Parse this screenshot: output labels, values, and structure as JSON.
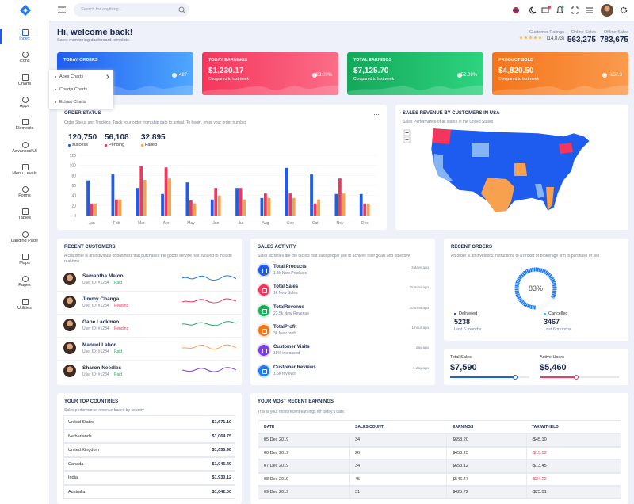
{
  "header": {
    "search_placeholder": "Search for anything..."
  },
  "sidebar": {
    "items": [
      "Index",
      "Icons",
      "Charts",
      "Apps",
      "Elements",
      "Advanced UI",
      "Menu Levels",
      "Forms",
      "Tables",
      "Landing Page",
      "Maps",
      "Pages",
      "Utilities"
    ],
    "submenu": [
      "Apex Charts",
      "Chartjs Charts",
      "Echart Charts"
    ]
  },
  "welcome": {
    "title": "Hi, welcome back!",
    "subtitle": "Sales monitoring dashboard template."
  },
  "stats": [
    {
      "label": "Customer Ratings",
      "value": "(14,873)"
    },
    {
      "label": "Online Sales",
      "value": "563,275"
    },
    {
      "label": "Offline Sales",
      "value": "783,675"
    }
  ],
  "cards": [
    {
      "title": "TODAY ORDERS",
      "change": "+427"
    },
    {
      "title": "TODAY EARNINGS",
      "value": "$1,230.17",
      "subtitle": "Compared to last week",
      "change": "23.09%"
    },
    {
      "title": "TOTAL EARNINGS",
      "value": "$7,125.70",
      "subtitle": "Compared to last week",
      "change": "52.09%"
    },
    {
      "title": "PRODUCT SOLD",
      "value": "$4,820.50",
      "subtitle": "Compared to last week",
      "change": "-152.3"
    }
  ],
  "order_status": {
    "title": "ORDER STATUS",
    "description": "Order Status and Tracking. Track your order from ship date to arrival. To begin, enter your order number.",
    "chart_data": {
      "type": "bar",
      "categories": [
        "Jan",
        "Feb",
        "Mar",
        "Apr",
        "May",
        "Jun",
        "Jul",
        "Aug",
        "Sep",
        "Oct",
        "Nov",
        "Dec"
      ],
      "ylim": [
        0,
        120
      ],
      "yticks": [
        0,
        20,
        40,
        60,
        80,
        100,
        120
      ],
      "series": [
        {
          "name": "success",
          "total": "120,750",
          "color": "#1e5cf0",
          "values": [
            70,
            82,
            55,
            43,
            66,
            32,
            55,
            35,
            95,
            82,
            43,
            43
          ]
        },
        {
          "name": "Pending",
          "total": "56,108",
          "color": "#f5365c",
          "values": [
            24,
            32,
            98,
            96,
            30,
            55,
            55,
            44,
            44,
            24,
            74,
            24
          ]
        },
        {
          "name": "Failed",
          "total": "32,895",
          "color": "#f7a14f",
          "values": [
            24,
            32,
            71,
            74,
            24,
            40,
            32,
            35,
            35,
            32,
            44,
            24
          ]
        }
      ]
    }
  },
  "map": {
    "title": "SALES REVENUE BY CUSTOMERS IN USA",
    "subtitle": "Sales Performance of all states in the United States"
  },
  "customers": {
    "title": "RECENT CUSTOMERS",
    "description": "A customer is an individual or business that purchases the goods service has evolved to include real-time",
    "rows": [
      {
        "name": "Samantha Melon",
        "id": "User ID: #1234",
        "status": "Paid"
      },
      {
        "name": "Jimmy Changa",
        "id": "User ID: #1234",
        "status": "Pending"
      },
      {
        "name": "Gabe Lackmen",
        "id": "User ID: #1234",
        "status": "Pending"
      },
      {
        "name": "Manuel Labor",
        "id": "User ID: #1234",
        "status": "Paid"
      },
      {
        "name": "Sharon Needles",
        "id": "User ID: #1234",
        "status": "Paid"
      }
    ]
  },
  "activity": {
    "title": "SALES ACTIVITY",
    "description": "Sales activities are the tactics that salespeople use to achieve their goals and objective",
    "items": [
      {
        "title": "Total Products",
        "subtitle": "1.3k New Products",
        "time": "3 days ago"
      },
      {
        "title": "Total Sales",
        "subtitle": "1k New Sales",
        "time": "25 mins ago"
      },
      {
        "title": "TotalRevenue",
        "subtitle": "23.5k New Revenue",
        "time": "30 mins ago"
      },
      {
        "title": "TotalProfit",
        "subtitle": "3k New profit",
        "time": "1 hour ago"
      },
      {
        "title": "Customer Visits",
        "subtitle": "15% increased",
        "time": "1 day ago"
      },
      {
        "title": "Customer Reviews",
        "subtitle": "1.5k reviews",
        "time": "1 day ago"
      }
    ]
  },
  "orders": {
    "title": "RECENT ORDERS",
    "description": "An order is an investor's instructions to a broker or brokerage firm to purchase or sell",
    "gauge": {
      "value": 83,
      "label": "83%"
    },
    "items": [
      {
        "label": "Delivered",
        "value": "5238",
        "period": "Last 6 months"
      },
      {
        "label": "Cancelled",
        "value": "3467",
        "period": "Last 6 months"
      }
    ]
  },
  "totals": [
    {
      "label": "Total Sales",
      "value": "$7,590"
    },
    {
      "label": "Active Users",
      "value": "$5,460"
    }
  ],
  "countries": {
    "title": "YOUR TOP COUNTRIES",
    "subtitle": "Sales performance revenue based by country",
    "rows": [
      [
        "United States",
        "$1,671.10"
      ],
      [
        "Netherlands",
        "$1,064.75"
      ],
      [
        "United Kingdom",
        "$1,055.98"
      ],
      [
        "Canada",
        "$1,045.49"
      ],
      [
        "India",
        "$1,930.12"
      ],
      [
        "Australia",
        "$1,042.00"
      ]
    ]
  },
  "earnings": {
    "title": "YOUR MOST RECENT EARNINGS",
    "subtitle": "This is your most recent earnings for today's date.",
    "columns": [
      "DATE",
      "SALES COUNT",
      "EARNINGS",
      "TAX WITHELD"
    ],
    "rows": [
      [
        "05 Dec 2019",
        34,
        "$658.20",
        "-$45.10"
      ],
      [
        "06 Dec 2019",
        26,
        "$453.25",
        "-$15.02"
      ],
      [
        "07 Dec 2019",
        34,
        "$653.12",
        "-$13.45"
      ],
      [
        "08 Dec 2019",
        45,
        "$546.47",
        "-$24.22"
      ],
      [
        "09 Dec 2019",
        31,
        "$425.72",
        "-$25.01"
      ]
    ]
  }
}
